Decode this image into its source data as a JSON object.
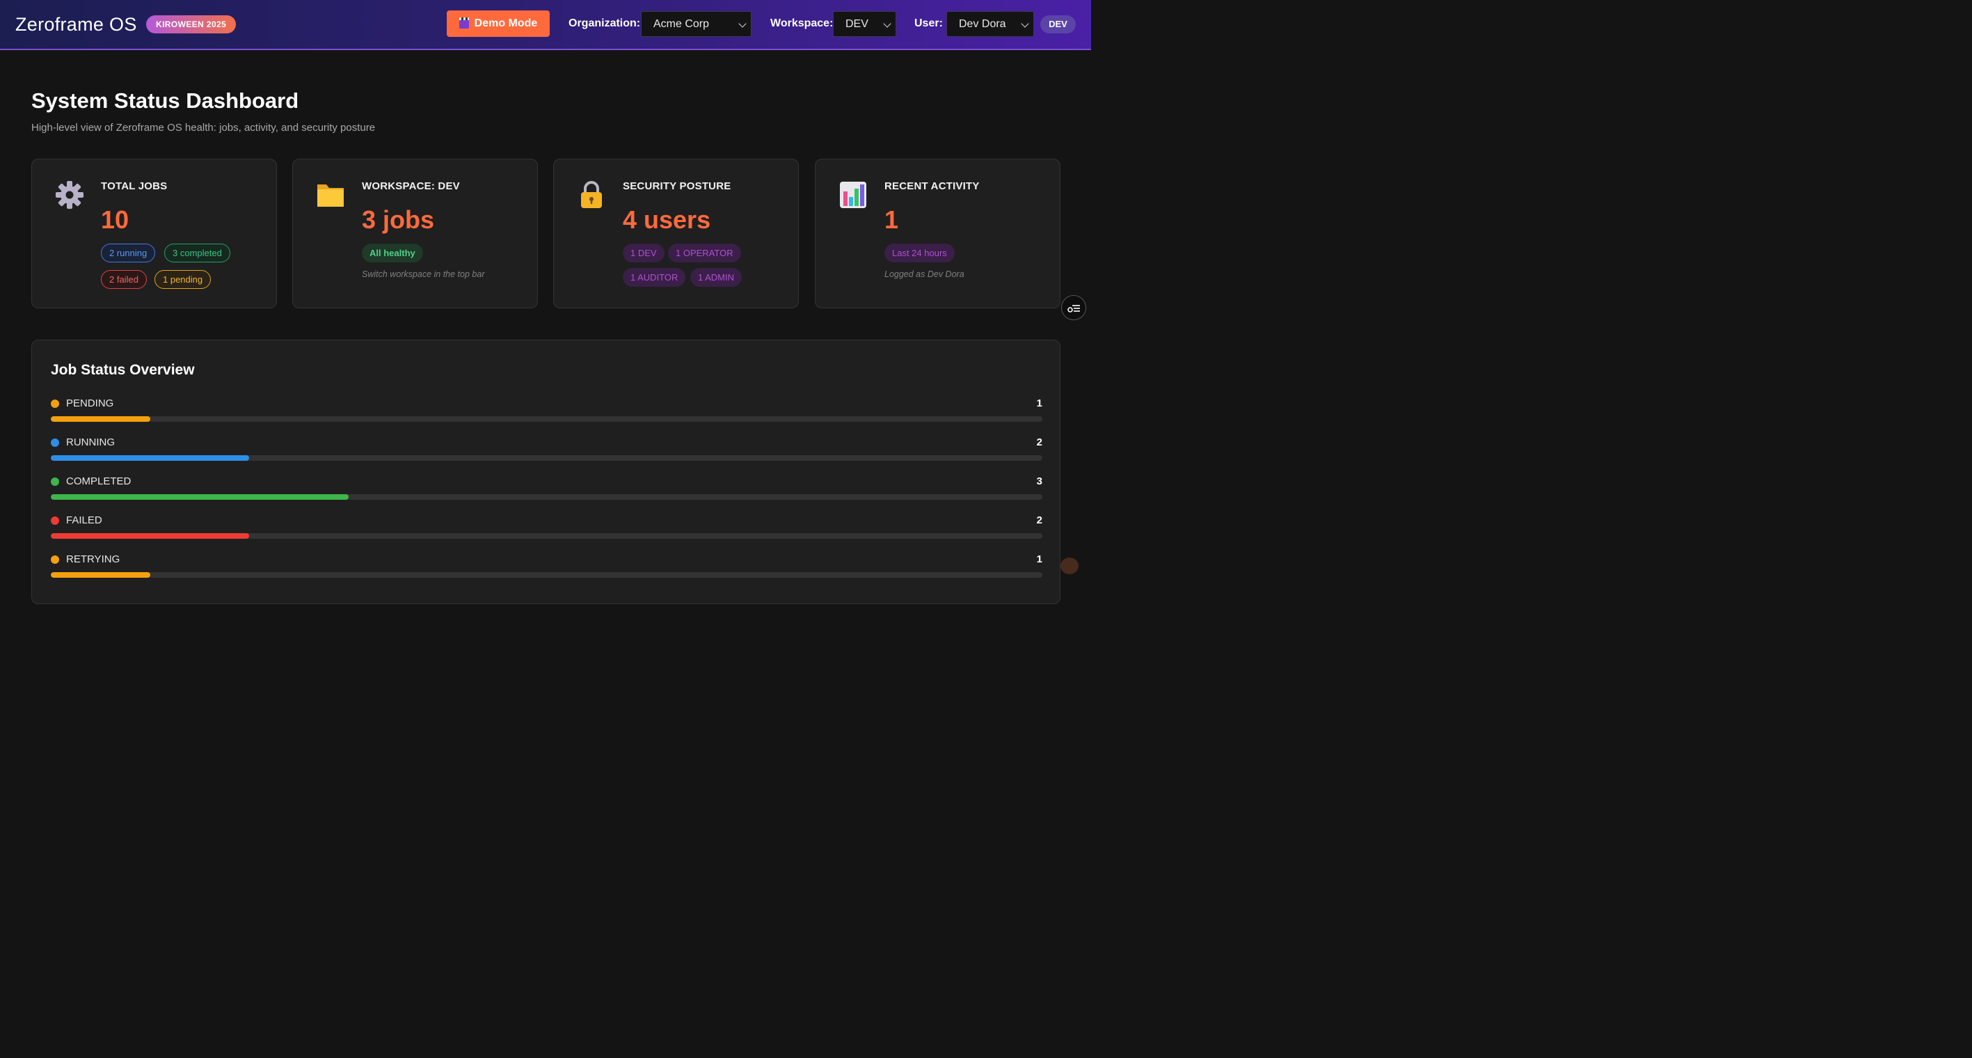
{
  "header": {
    "brand": "Zeroframe OS",
    "event_badge": "KIROWEEN 2025",
    "demo_button": "Demo Mode",
    "organization_label": "Organization:",
    "organization_value": "Acme Corp",
    "workspace_label": "Workspace:",
    "workspace_value": "DEV",
    "user_label": "User:",
    "user_value": "Dev Dora",
    "role_badge": "DEV"
  },
  "page": {
    "title": "System Status Dashboard",
    "subtitle": "High-level view of Zeroframe OS health: jobs, activity, and security posture"
  },
  "cards": {
    "total_jobs": {
      "icon": "gear-icon",
      "title": "TOTAL JOBS",
      "value": "10",
      "chips": [
        "2 running",
        "3 completed",
        "2 failed",
        "1 pending"
      ]
    },
    "workspace": {
      "icon": "folder-icon",
      "title": "WORKSPACE: DEV",
      "value": "3 jobs",
      "chip": "All healthy",
      "note": "Switch workspace in the top bar"
    },
    "security": {
      "icon": "lock-icon",
      "title": "SECURITY POSTURE",
      "value": "4 users",
      "chips": [
        "1 DEV",
        "1 OPERATOR",
        "1 AUDITOR",
        "1 ADMIN"
      ]
    },
    "activity": {
      "icon": "bar-chart-icon",
      "title": "RECENT ACTIVITY",
      "value": "1",
      "chip": "Last 24 hours",
      "note": "Logged as Dev Dora"
    }
  },
  "overview": {
    "title": "Job Status Overview",
    "max": 10,
    "statuses": [
      {
        "name": "PENDING",
        "count": 1,
        "color": "#f5a00f"
      },
      {
        "name": "RUNNING",
        "count": 2,
        "color": "#2f8ee8"
      },
      {
        "name": "COMPLETED",
        "count": 3,
        "color": "#3fb54a"
      },
      {
        "name": "FAILED",
        "count": 2,
        "color": "#ef3b35"
      },
      {
        "name": "RETRYING",
        "count": 1,
        "color": "#f5a00f"
      }
    ]
  },
  "colors": {
    "accent": "#ff6a3d",
    "header_start": "#1c1e52",
    "header_end": "#4a20a6"
  }
}
